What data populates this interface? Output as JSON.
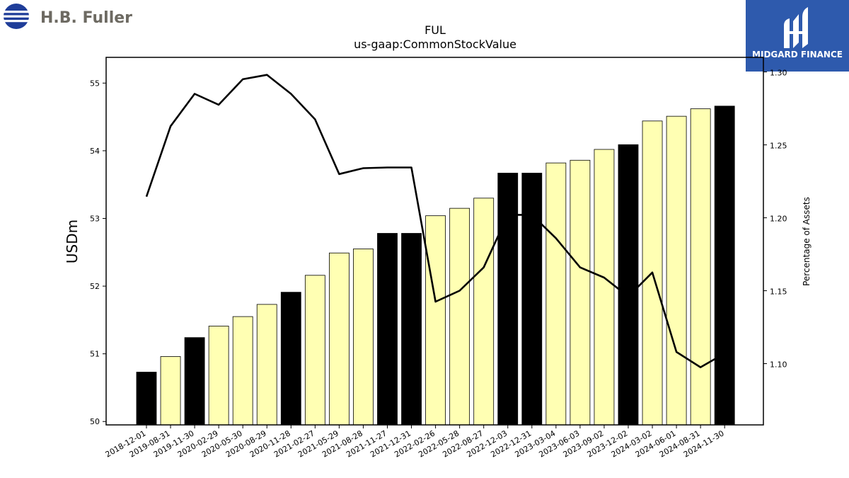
{
  "logos": {
    "company": "H.B. Fuller",
    "publisher": "MIDGARD FINANCE",
    "company_colors": {
      "blue": "#1f3d99"
    },
    "publisher_colors": {
      "background": "#2e5aad"
    }
  },
  "chart_data": {
    "type": "bar",
    "title": "FUL",
    "subtitle": "us-gaap:CommonStockValue",
    "ylabel": "USDm",
    "y2label": "Percentage of Assets",
    "ylim": [
      49.95,
      55.38
    ],
    "y2lim": [
      1.058,
      1.31
    ],
    "yticks": [
      50,
      51,
      52,
      53,
      54,
      55
    ],
    "y2ticks": [
      1.1,
      1.15,
      1.2,
      1.25,
      1.3
    ],
    "grid": false,
    "colors": {
      "fiscal_year_end": "#000000",
      "quarter": "#ffffb3",
      "line": "#000000"
    },
    "categories": [
      "2018-12-01",
      "2019-08-31",
      "2019-11-30",
      "2020-02-29",
      "2020-05-30",
      "2020-08-29",
      "2020-11-28",
      "2021-02-27",
      "2021-05-29",
      "2021-08-28",
      "2021-11-27",
      "2021-12-31",
      "2022-02-26",
      "2022-05-28",
      "2022-08-27",
      "2022-12-03",
      "2022-12-31",
      "2023-03-04",
      "2023-06-03",
      "2023-09-02",
      "2023-12-02",
      "2024-03-02",
      "2024-06-01",
      "2024-08-31",
      "2024-11-30"
    ],
    "series": [
      {
        "type": "bar",
        "values": [
          50.73,
          50.96,
          51.24,
          51.41,
          51.55,
          51.73,
          51.91,
          52.16,
          52.49,
          52.55,
          52.78,
          52.78,
          53.04,
          53.15,
          53.3,
          53.67,
          53.67,
          53.82,
          53.86,
          54.02,
          54.09,
          54.44,
          54.51,
          54.62,
          54.66
        ],
        "highlight": [
          true,
          false,
          true,
          false,
          false,
          false,
          true,
          false,
          false,
          false,
          true,
          true,
          false,
          false,
          false,
          true,
          true,
          false,
          false,
          false,
          true,
          false,
          false,
          false,
          true
        ]
      },
      {
        "type": "line",
        "axis": "right",
        "values": [
          1.2145,
          1.2628,
          1.285,
          1.2775,
          1.295,
          1.298,
          1.285,
          1.2675,
          1.23,
          1.234,
          1.2345,
          1.2345,
          1.1425,
          1.15,
          1.166,
          1.202,
          1.202,
          1.186,
          1.166,
          1.159,
          1.146,
          1.1625,
          1.108,
          1.0975,
          1.107
        ]
      }
    ]
  }
}
